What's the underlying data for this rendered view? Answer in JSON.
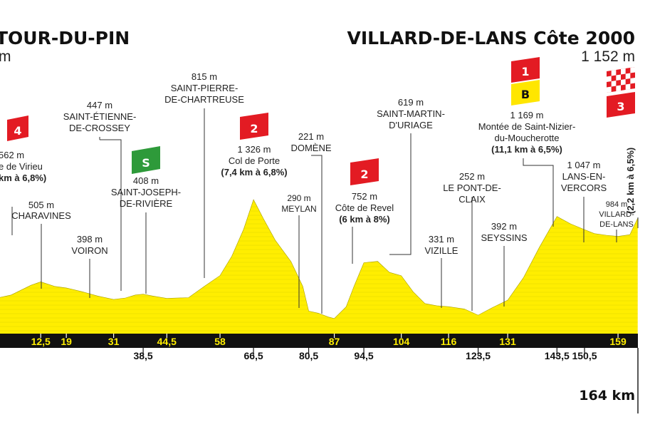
{
  "header": {
    "start_name": "TOUR-DU-PIN",
    "start_alt": "m",
    "finish_name": "VILLARD-DE-LANS Côte 2000",
    "finish_alt": "1 152 m"
  },
  "total_distance": "164 km",
  "colors": {
    "profile_fill": "#ffee00",
    "baseline": "#111111",
    "climb_badge": "#e31b23",
    "sprint_badge": "#2e9a3a",
    "bonus_badge": "#ffe600"
  },
  "chart_data": {
    "type": "area",
    "xlabel": "",
    "ylabel": "",
    "x_ticks_top": [
      "12,5",
      "19",
      "31",
      "44,5",
      "58",
      "87",
      "104",
      "116",
      "131",
      "159"
    ],
    "x_ticks_bottom": [
      "38,5",
      "66,5",
      "80,5",
      "94,5",
      "123,5",
      "143,5",
      "150,5"
    ],
    "profile_km": [
      0,
      5,
      10,
      12.5,
      16,
      19,
      23,
      27,
      31,
      34,
      36.5,
      38.5,
      41,
      44.5,
      50,
      54,
      58,
      61,
      64,
      66.5,
      69,
      72,
      76,
      79,
      80.5,
      83,
      85.5,
      87,
      90,
      92,
      94.5,
      98,
      101,
      104,
      107,
      110,
      113,
      116,
      120,
      123.5,
      127,
      131,
      135,
      139,
      143.5,
      147,
      150.5,
      153,
      156,
      159,
      162,
      164
    ],
    "profile_alt": [
      400,
      440,
      530,
      562,
      520,
      505,
      470,
      430,
      398,
      412,
      440,
      447,
      430,
      408,
      415,
      520,
      620,
      800,
      1050,
      1326,
      1150,
      950,
      750,
      520,
      290,
      270,
      235,
      221,
      330,
      520,
      740,
      752,
      650,
      619,
      470,
      360,
      340,
      331,
      310,
      252,
      320,
      392,
      600,
      880,
      1169,
      1100,
      1047,
      1010,
      995,
      984,
      1000,
      1152
    ],
    "climbs": [
      {
        "badge": "4",
        "alt": "562 m",
        "name": "e de Virieu",
        "detail": "km à 6,8%)"
      },
      {
        "badge": "2",
        "alt": "1 326 m",
        "name": "Col de Porte",
        "detail": "(7,4 km à 6,8%)"
      },
      {
        "badge": "2",
        "alt": "752 m",
        "name": "Côte de Revel",
        "detail": "(6 km à 8%)"
      },
      {
        "badge": "1",
        "badge2": "B",
        "alt": "1 169 m",
        "name": "Montée de Saint-Nizier-",
        "name2": "du-Moucherotte",
        "detail": "(11,1 km à 6,5%)"
      },
      {
        "badge": "3",
        "detail": "(2,2 km à 6,5%)"
      }
    ],
    "sprint": {
      "badge": "S"
    },
    "places": [
      {
        "alt": "505 m",
        "name": "CHARAVINES"
      },
      {
        "alt": "398 m",
        "name": "VOIRON"
      },
      {
        "alt": "447 m",
        "name": "SAINT-ÉTIENNE-",
        "name2": "DE-CROSSEY"
      },
      {
        "alt": "408 m",
        "name": "SAINT-JOSEPH-",
        "name2": "DE-RIVIÈRE"
      },
      {
        "alt": "815 m",
        "name": "SAINT-PIERRE-",
        "name2": "DE-CHARTREUSE"
      },
      {
        "alt": "290 m",
        "name": "MEYLAN"
      },
      {
        "alt": "221 m",
        "name": "DOMÈNE"
      },
      {
        "alt": "619 m",
        "name": "SAINT-MARTIN-",
        "name2": "D'URIAGE"
      },
      {
        "alt": "331 m",
        "name": "VIZILLE"
      },
      {
        "alt": "252 m",
        "name": "LE PONT-DE-",
        "name2": "CLAIX"
      },
      {
        "alt": "392 m",
        "name": "SEYSSINS"
      },
      {
        "alt": "1 047 m",
        "name": "LANS-EN-",
        "name2": "VERCORS"
      },
      {
        "alt": "984 m",
        "name": "VILLARD-",
        "name2": "DE-LANS"
      }
    ]
  }
}
